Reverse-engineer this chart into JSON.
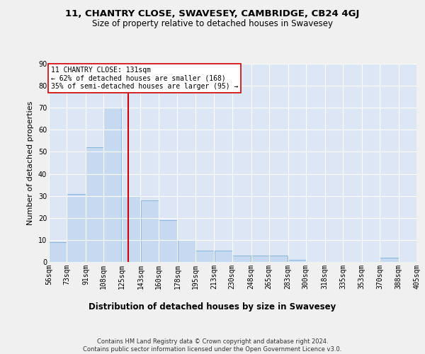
{
  "title": "11, CHANTRY CLOSE, SWAVESEY, CAMBRIDGE, CB24 4GJ",
  "subtitle": "Size of property relative to detached houses in Swavesey",
  "xlabel": "Distribution of detached houses by size in Swavesey",
  "ylabel": "Number of detached properties",
  "bar_color": "#c6d9f1",
  "bar_edgecolor": "#7badd6",
  "plot_bg_color": "#dce6f5",
  "fig_bg_color": "#f0f0f0",
  "grid_color": "#ffffff",
  "vline_color": "#cc0000",
  "vline_x": 131,
  "annotation_text": "11 CHANTRY CLOSE: 131sqm\n← 62% of detached houses are smaller (168)\n35% of semi-detached houses are larger (95) →",
  "bin_edges": [
    56,
    73,
    91,
    108,
    125,
    143,
    160,
    178,
    195,
    213,
    230,
    248,
    265,
    283,
    300,
    318,
    335,
    353,
    370,
    388,
    405
  ],
  "bar_heights": [
    9,
    31,
    52,
    70,
    30,
    28,
    19,
    10,
    5,
    5,
    3,
    3,
    3,
    1,
    0,
    0,
    0,
    0,
    2,
    0
  ],
  "ylim": [
    0,
    90
  ],
  "yticks": [
    0,
    10,
    20,
    30,
    40,
    50,
    60,
    70,
    80,
    90
  ],
  "title_fontsize": 9.5,
  "subtitle_fontsize": 8.5,
  "ylabel_fontsize": 8,
  "xlabel_fontsize": 8.5,
  "tick_fontsize": 7,
  "annotation_fontsize": 7,
  "footer_fontsize": 6,
  "footer": "Contains HM Land Registry data © Crown copyright and database right 2024.\nContains public sector information licensed under the Open Government Licence v3.0."
}
